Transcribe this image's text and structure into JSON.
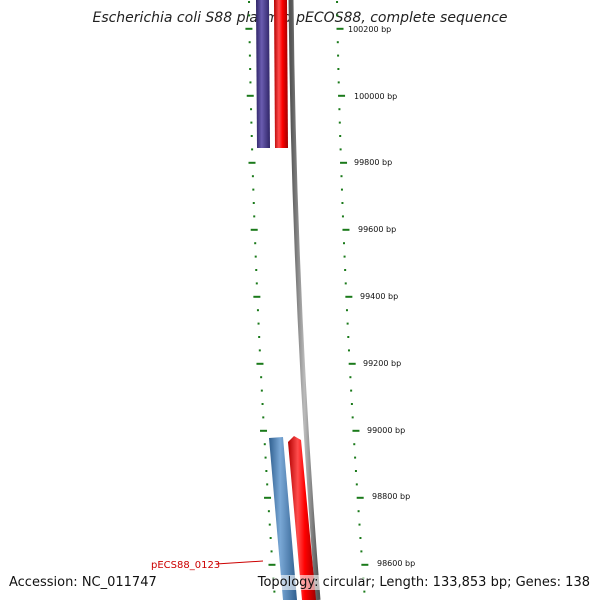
{
  "title": "Escherichia coli S88 plasmid pECOS88, complete sequence",
  "footer": {
    "accession": "Accession: NC_011747",
    "summary": "Topology: circular; Length: 133,853 bp; Genes: 138"
  },
  "colors": {
    "tick": "#1a7a1a",
    "forward_gene": "#ff0000",
    "reverse_gene_purple": "#4b3f8f",
    "reverse_gene_blue": "#4a7fb5",
    "backbone": "#808080",
    "gene_label": "#cc0000"
  },
  "ticks": [
    {
      "label": "100200 bp"
    },
    {
      "label": "100000 bp"
    },
    {
      "label": "99800 bp"
    },
    {
      "label": "99600 bp"
    },
    {
      "label": "99400 bp"
    },
    {
      "label": "99200 bp"
    },
    {
      "label": "99000 bp"
    },
    {
      "label": "98800 bp"
    },
    {
      "label": "98600 bp"
    }
  ],
  "genes": [
    {
      "label": "pECS88_0123"
    }
  ]
}
